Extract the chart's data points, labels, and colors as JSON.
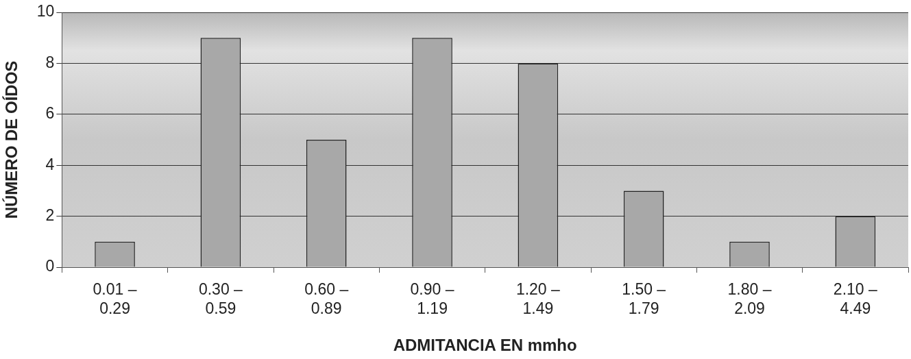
{
  "chart_data": {
    "type": "bar",
    "xlabel": "ADMITANCIA EN mmho",
    "ylabel": "NÚMERO DE OÍDOS",
    "categories": [
      "0.01 – 0.29",
      "0.30 – 0.59",
      "0.60 – 0.89",
      "0.90 – 1.19",
      "1.20 – 1.49",
      "1.50 – 1.79",
      "1.80 – 2.09",
      "2.10 – 4.49"
    ],
    "values": [
      1,
      9,
      5,
      9,
      8,
      3,
      1,
      2
    ],
    "color": "#a8a8a8",
    "ylim": [
      0,
      10
    ],
    "yticks": [
      0,
      2,
      4,
      6,
      8,
      10
    ],
    "grid": "y",
    "legend": false
  }
}
